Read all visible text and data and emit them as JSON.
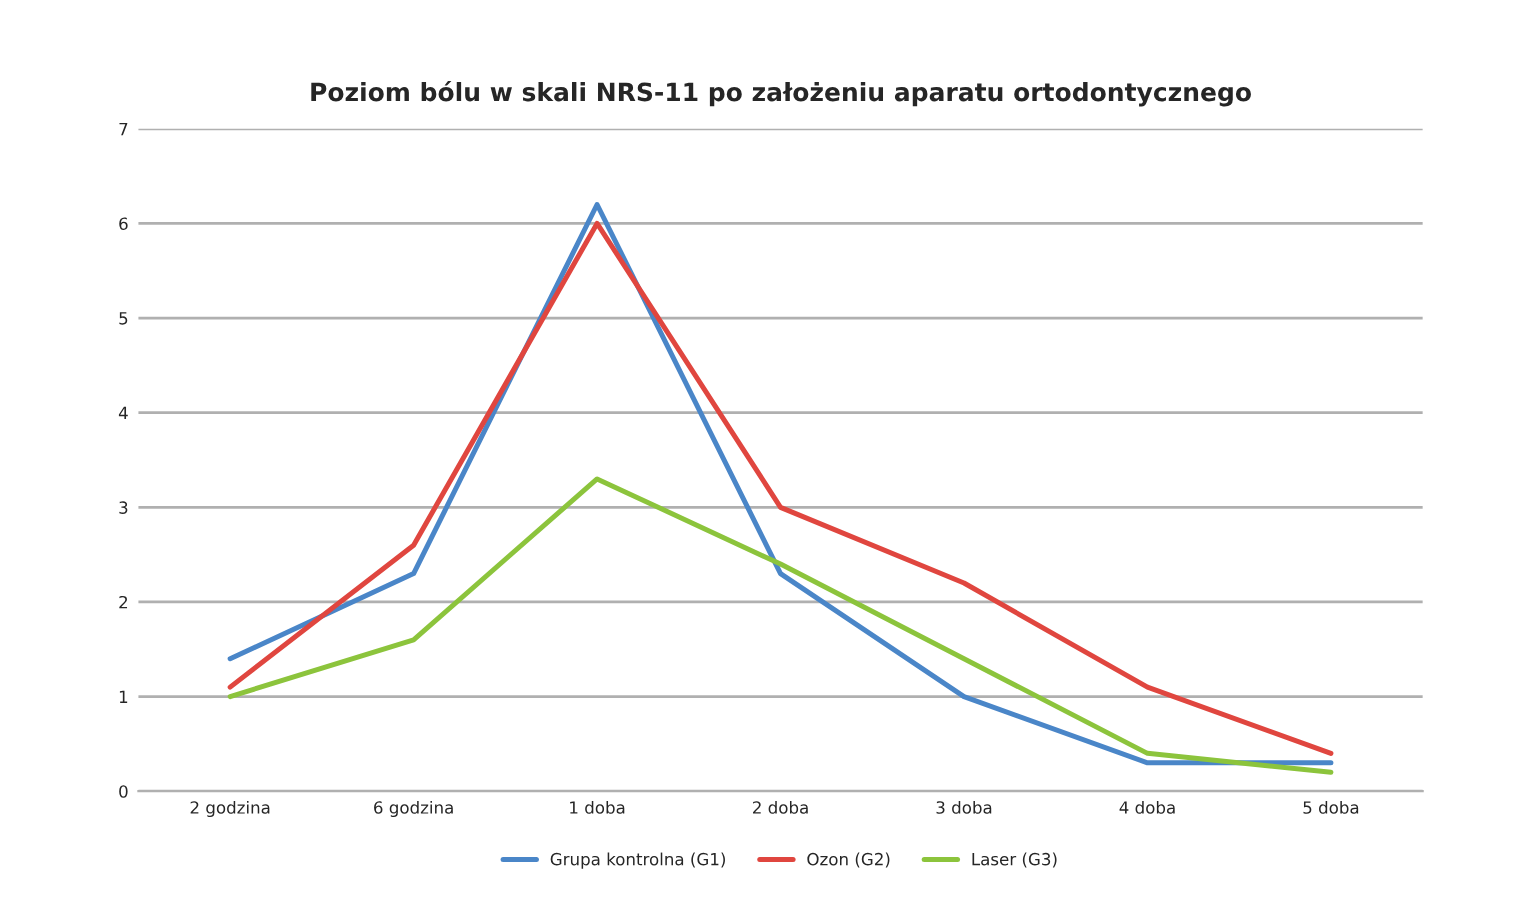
{
  "chart_data": {
    "type": "line",
    "title": "Poziom bólu w skali NRS-11 po założeniu aparatu ortodontycznego",
    "categories": [
      "2 godzina",
      "6 godzina",
      "1 doba",
      "2 doba",
      "3 doba",
      "4 doba",
      "5 doba"
    ],
    "series": [
      {
        "name": "Grupa kontrolna (G1)",
        "color": "#4a86c8",
        "values": [
          1.4,
          2.3,
          6.2,
          2.3,
          1.0,
          0.3,
          0.3
        ]
      },
      {
        "name": "Ozon (G2)",
        "color": "#e0463f",
        "values": [
          1.1,
          2.6,
          6.0,
          3.0,
          2.2,
          1.1,
          0.4
        ]
      },
      {
        "name": "Laser (G3)",
        "color": "#8cc43c",
        "values": [
          1.0,
          1.6,
          3.3,
          2.4,
          1.4,
          0.4,
          0.2
        ]
      }
    ],
    "ylim": [
      0,
      7
    ],
    "yticks": [
      0,
      1,
      2,
      3,
      4,
      5,
      6,
      7
    ],
    "grid": "y",
    "legend": "bottom",
    "marker": "none",
    "line_style": "solid"
  }
}
